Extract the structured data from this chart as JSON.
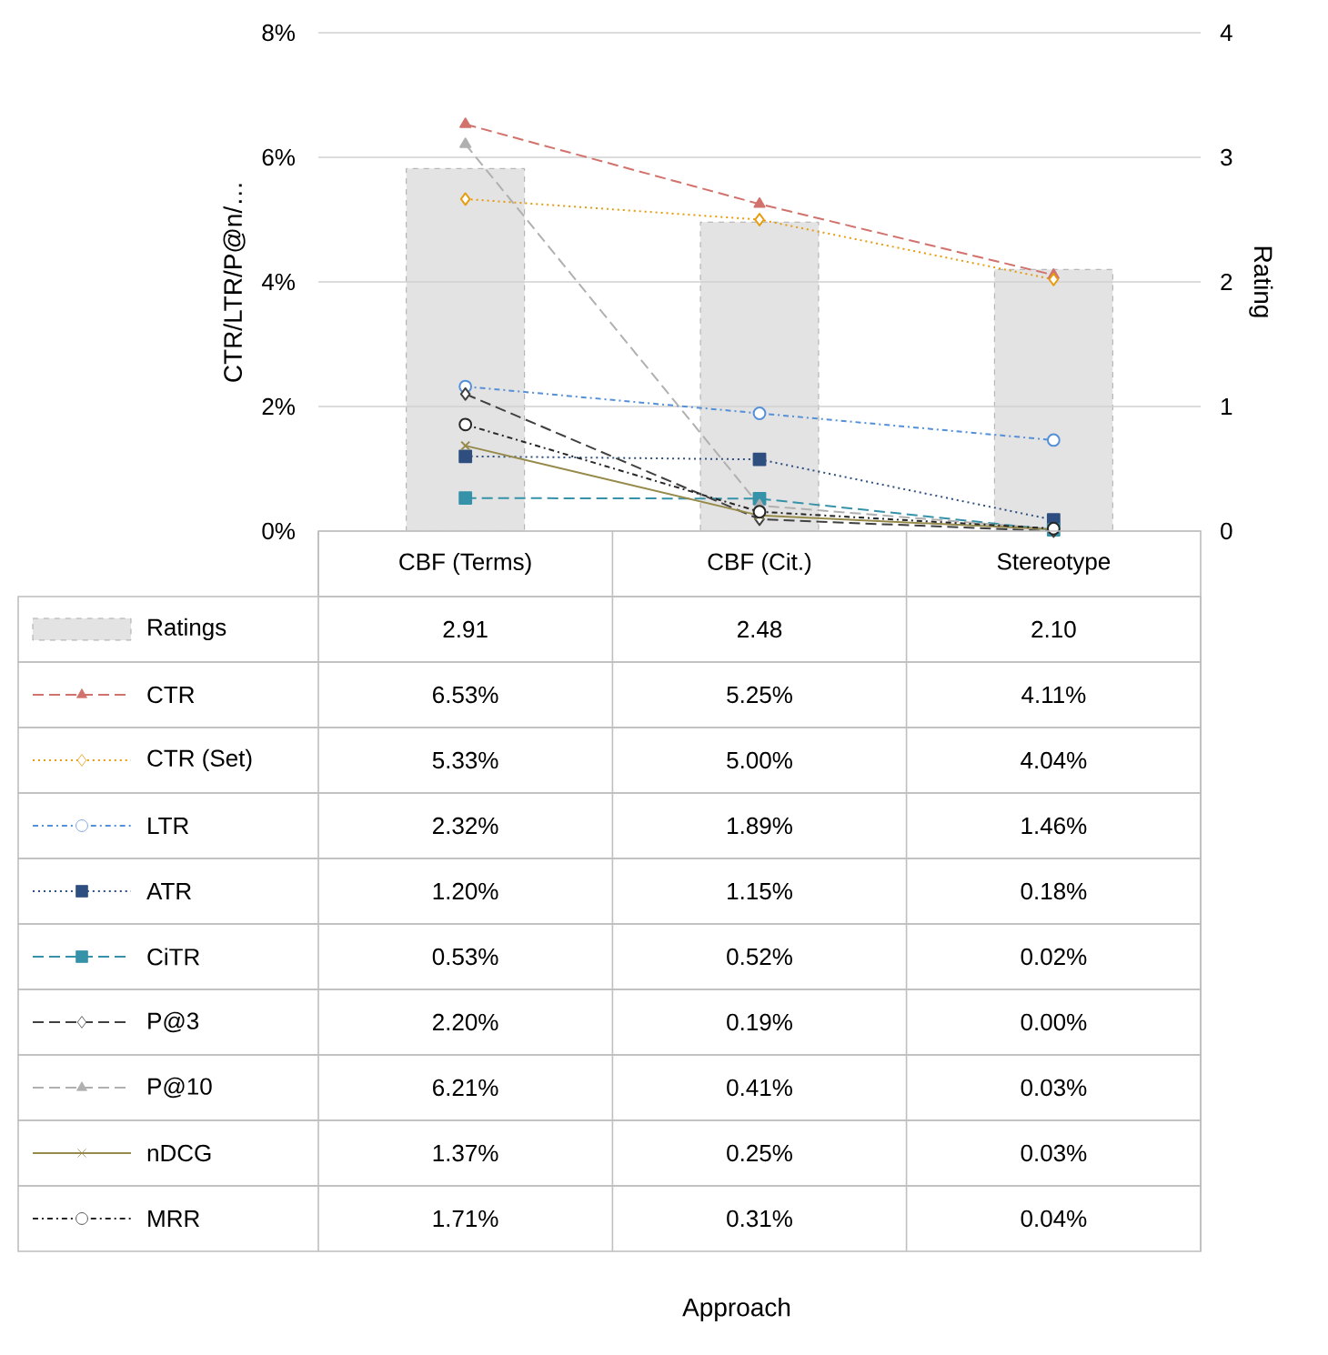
{
  "chart_data": {
    "type": "line",
    "annotations": [
      "Approach"
    ],
    "ylabel": "CTR/LTR/P@n/…",
    "y2label": "Rating",
    "categories": [
      "CBF (Terms)",
      "CBF (Cit.)",
      "Stereotype"
    ],
    "ylim": [
      0,
      8
    ],
    "yticks": [
      {
        "value": 0,
        "label": "0%"
      },
      {
        "value": 2,
        "label": "2%"
      },
      {
        "value": 4,
        "label": "4%"
      },
      {
        "value": 6,
        "label": "6%"
      },
      {
        "value": 8,
        "label": "8%"
      }
    ],
    "y2lim": [
      0,
      4
    ],
    "y2ticks": [
      0,
      1,
      2,
      3,
      4
    ],
    "grid": "y",
    "legend": "bottom",
    "series": [
      {
        "name": "Ratings",
        "type": "bar",
        "axis": "y2",
        "color": "#e3e3e3",
        "values": [
          2.91,
          2.48,
          2.1
        ],
        "value_labels": [
          "2.91",
          "2.48",
          "2.10"
        ]
      },
      {
        "name": "CTR",
        "color": "#d2726c",
        "marker": "triangle",
        "line_style": "dashed",
        "values": [
          6.53,
          5.25,
          4.11
        ],
        "value_labels": [
          "6.53%",
          "5.25%",
          "4.11%"
        ]
      },
      {
        "name": "CTR (Set)",
        "color": "#e69c0e",
        "marker": "diamond",
        "line_style": "dotted",
        "values": [
          5.33,
          5.0,
          4.04
        ],
        "value_labels": [
          "5.33%",
          "5.00%",
          "4.04%"
        ]
      },
      {
        "name": "LTR",
        "color": "#5590d8",
        "marker": "circle",
        "line_style": "dashdot",
        "values": [
          2.32,
          1.89,
          1.46
        ],
        "value_labels": [
          "2.32%",
          "1.89%",
          "1.46%"
        ]
      },
      {
        "name": "ATR",
        "color": "#2e4e80",
        "marker": "square",
        "line_style": "dotted",
        "values": [
          1.2,
          1.15,
          0.18
        ],
        "value_labels": [
          "1.20%",
          "1.15%",
          "0.18%"
        ]
      },
      {
        "name": "CiTR",
        "color": "#3592a8",
        "marker": "square",
        "line_style": "dashed",
        "values": [
          0.53,
          0.52,
          0.02
        ],
        "value_labels": [
          "0.53%",
          "0.52%",
          "0.02%"
        ]
      },
      {
        "name": "P@3",
        "color": "#404040",
        "marker": "diamond",
        "line_style": "dashed",
        "values": [
          2.2,
          0.19,
          0.0
        ],
        "value_labels": [
          "2.20%",
          "0.19%",
          "0.00%"
        ]
      },
      {
        "name": "P@10",
        "color": "#b0b0b0",
        "marker": "triangle",
        "line_style": "dashed",
        "values": [
          6.21,
          0.41,
          0.03
        ],
        "value_labels": [
          "6.21%",
          "0.41%",
          "0.03%"
        ]
      },
      {
        "name": "nDCG",
        "color": "#968a4a",
        "marker": "cross",
        "line_style": "solid",
        "values": [
          1.37,
          0.25,
          0.03
        ],
        "value_labels": [
          "1.37%",
          "0.25%",
          "0.03%"
        ]
      },
      {
        "name": "MRR",
        "color": "#262626",
        "marker": "circle",
        "line_style": "dashdot",
        "values": [
          1.71,
          0.31,
          0.04
        ],
        "value_labels": [
          "1.71%",
          "0.31%",
          "0.04%"
        ]
      }
    ]
  }
}
